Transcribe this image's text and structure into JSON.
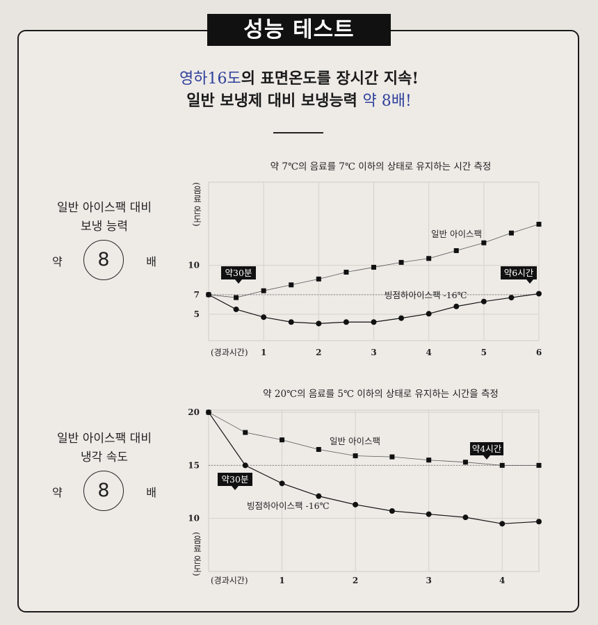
{
  "page_title": "성능 테스트",
  "headline": {
    "line1_accent": "영하16도",
    "line1_rest": "의 표면온도를 장시간 지속!",
    "line2_rest": "일반 보냉제 대비 보냉능력 ",
    "line2_accent": "약 8배!"
  },
  "colors": {
    "accent": "#2e3f9a",
    "badge": "#111111",
    "ice_series": "#111111",
    "regular_series": "#555555"
  },
  "section1": {
    "side_line1": "일반 아이스팩 대비",
    "side_line2": "보냉 능력",
    "ratio_prefix": "약",
    "ratio_value": "8",
    "ratio_suffix": "배"
  },
  "section2": {
    "side_line1": "일반 아이스팩 대비",
    "side_line2": "냉각 속도",
    "ratio_prefix": "약",
    "ratio_value": "8",
    "ratio_suffix": "배"
  },
  "chart_data": [
    {
      "type": "line",
      "title": "약 7℃의 음료를 7℃ 이하의 상태로 유지하는 시간 측정",
      "ylabel": "(음료 온도)",
      "xlabel": "(경과시간)",
      "x_ticks": [
        "1",
        "2",
        "3",
        "4",
        "5",
        "6"
      ],
      "y_ticks": [
        "5",
        "7",
        "10"
      ],
      "xlim": [
        0,
        6
      ],
      "ylim": [
        2.3,
        18.5
      ],
      "reference_y": 7,
      "grid": true,
      "series": [
        {
          "name": "일반 아이스팩",
          "marker": "square",
          "x": [
            0,
            0.5,
            1,
            1.5,
            2,
            2.5,
            3,
            3.5,
            4,
            4.5,
            5,
            5.5,
            6
          ],
          "y": [
            7,
            6.7,
            7.4,
            8,
            8.6,
            9.3,
            9.8,
            10.3,
            10.7,
            11.5,
            12.3,
            13.3,
            14.2
          ]
        },
        {
          "name": "빙점하아이스팩 -16℃",
          "marker": "circle",
          "x": [
            0,
            0.5,
            1,
            1.5,
            2,
            2.5,
            3,
            3.5,
            4,
            4.5,
            5,
            5.5,
            6
          ],
          "y": [
            7,
            5.5,
            4.7,
            4.2,
            4.05,
            4.2,
            4.2,
            4.6,
            5.05,
            5.8,
            6.3,
            6.7,
            7.1
          ]
        }
      ],
      "annotations": [
        {
          "text": "약30분"
        },
        {
          "text": "약6시간"
        }
      ]
    },
    {
      "type": "line",
      "title": "약 20℃의 음료를 5℃ 이하의 상태로 유지하는 시간을 측정",
      "ylabel": "(음료 온도)",
      "xlabel": "(경과시간)",
      "x_ticks": [
        "1",
        "2",
        "3",
        "4"
      ],
      "y_ticks": [
        "10",
        "15",
        "20"
      ],
      "xlim": [
        0,
        4.5
      ],
      "ylim": [
        5,
        20.2
      ],
      "reference_y": 15,
      "grid": true,
      "series": [
        {
          "name": "일반 아이스팩",
          "marker": "square",
          "x": [
            0,
            0.5,
            1,
            1.5,
            2,
            2.5,
            3,
            3.5,
            4,
            4.5
          ],
          "y": [
            20,
            18.1,
            17.4,
            16.5,
            15.9,
            15.8,
            15.5,
            15.3,
            15,
            15
          ]
        },
        {
          "name": "빙점하아이스팩 -16℃",
          "marker": "circle",
          "x": [
            0,
            0.5,
            1,
            1.5,
            2,
            2.5,
            3,
            3.5,
            4,
            4.5
          ],
          "y": [
            20,
            15,
            13.3,
            12.1,
            11.3,
            10.7,
            10.4,
            10.1,
            9.5,
            9.7
          ]
        }
      ],
      "annotations": [
        {
          "text": "약30분"
        },
        {
          "text": "약4시간"
        }
      ]
    }
  ]
}
